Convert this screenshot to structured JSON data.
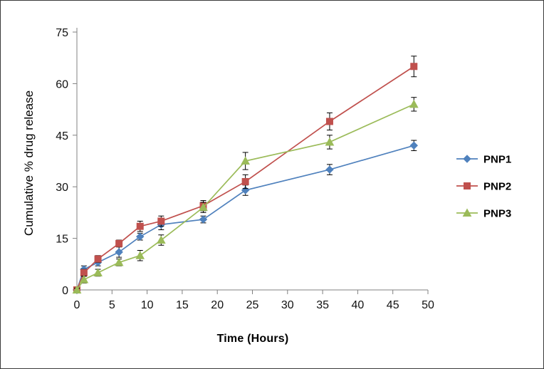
{
  "chart_data": {
    "type": "line",
    "title": "",
    "xlabel": "Time (Hours)",
    "ylabel": "Cumulative % drug release",
    "xlim": [
      0,
      50
    ],
    "ylim": [
      0,
      75
    ],
    "xticks": [
      0,
      5,
      10,
      15,
      20,
      25,
      30,
      35,
      40,
      45,
      50
    ],
    "yticks": [
      0,
      15,
      30,
      45,
      60,
      75
    ],
    "grid": false,
    "legend_position": "right",
    "x": [
      0,
      1,
      3,
      6,
      9,
      12,
      18,
      24,
      36,
      48
    ],
    "series": [
      {
        "name": "PNP1",
        "color": "#4F81BD",
        "marker": "diamond",
        "values": [
          0,
          6,
          8,
          11,
          15.5,
          19,
          20.5,
          29,
          35,
          42
        ],
        "errors": [
          0.5,
          1,
          1,
          1.5,
          1,
          1.5,
          1,
          1.5,
          1.5,
          1.5
        ]
      },
      {
        "name": "PNP2",
        "color": "#C0504D",
        "marker": "square",
        "values": [
          0,
          5,
          9,
          13.5,
          18.5,
          20,
          24.5,
          31.5,
          49,
          65
        ],
        "errors": [
          0.5,
          1,
          1,
          1,
          1.5,
          1.5,
          1.5,
          2,
          2.5,
          3
        ]
      },
      {
        "name": "PNP3",
        "color": "#9BBB59",
        "marker": "triangle",
        "values": [
          0,
          3,
          5,
          8,
          10,
          14.5,
          24,
          37.5,
          43,
          54
        ],
        "errors": [
          0.5,
          1,
          1,
          1,
          1.5,
          1.5,
          1.5,
          2.5,
          2,
          2
        ]
      }
    ],
    "error_bar_color": "#000000",
    "axis_color": "#808080",
    "tick_label_color": "#111111"
  }
}
